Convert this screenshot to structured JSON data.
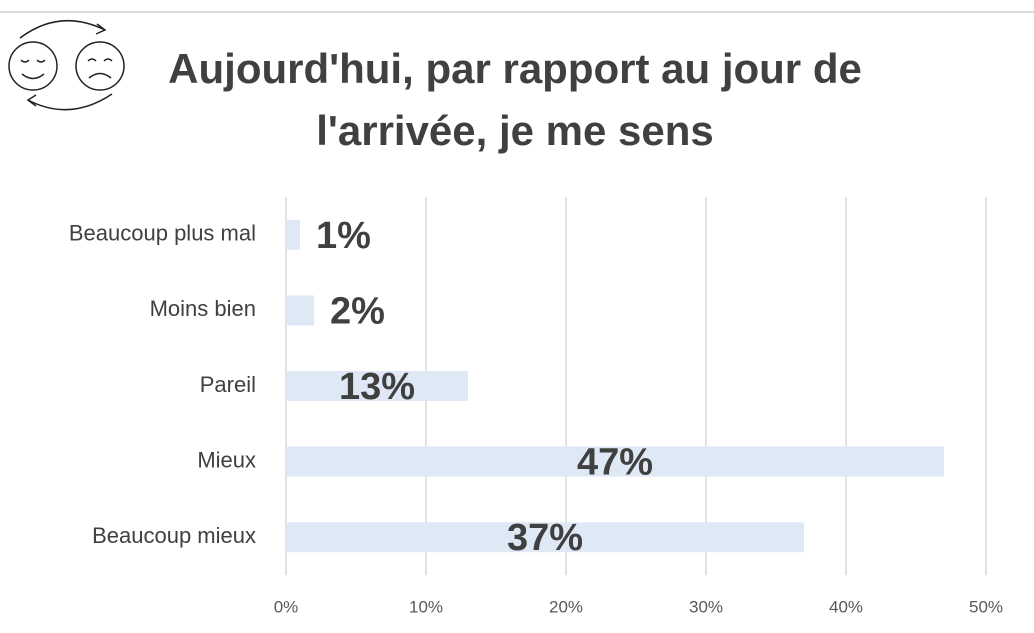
{
  "chart_data": {
    "type": "bar",
    "orientation": "horizontal",
    "title": "Aujourd'hui, par rapport au jour de l'arrivée, je me sens",
    "categories": [
      "Beaucoup plus mal",
      "Moins bien",
      "Pareil",
      "Mieux",
      "Beaucoup mieux"
    ],
    "values": [
      1,
      2,
      13,
      47,
      37
    ],
    "value_labels": [
      "1%",
      "2%",
      "13%",
      "47%",
      "37%"
    ],
    "color": "#dfe9f5",
    "xlim": [
      0,
      50
    ],
    "xticks": [
      {
        "value": 0,
        "label": "0%"
      },
      {
        "value": 10,
        "label": "10%"
      },
      {
        "value": 20,
        "label": "20%"
      },
      {
        "value": 30,
        "label": "30%"
      },
      {
        "value": 40,
        "label": "40%"
      },
      {
        "value": 50,
        "label": "50%"
      }
    ],
    "grid": true
  }
}
